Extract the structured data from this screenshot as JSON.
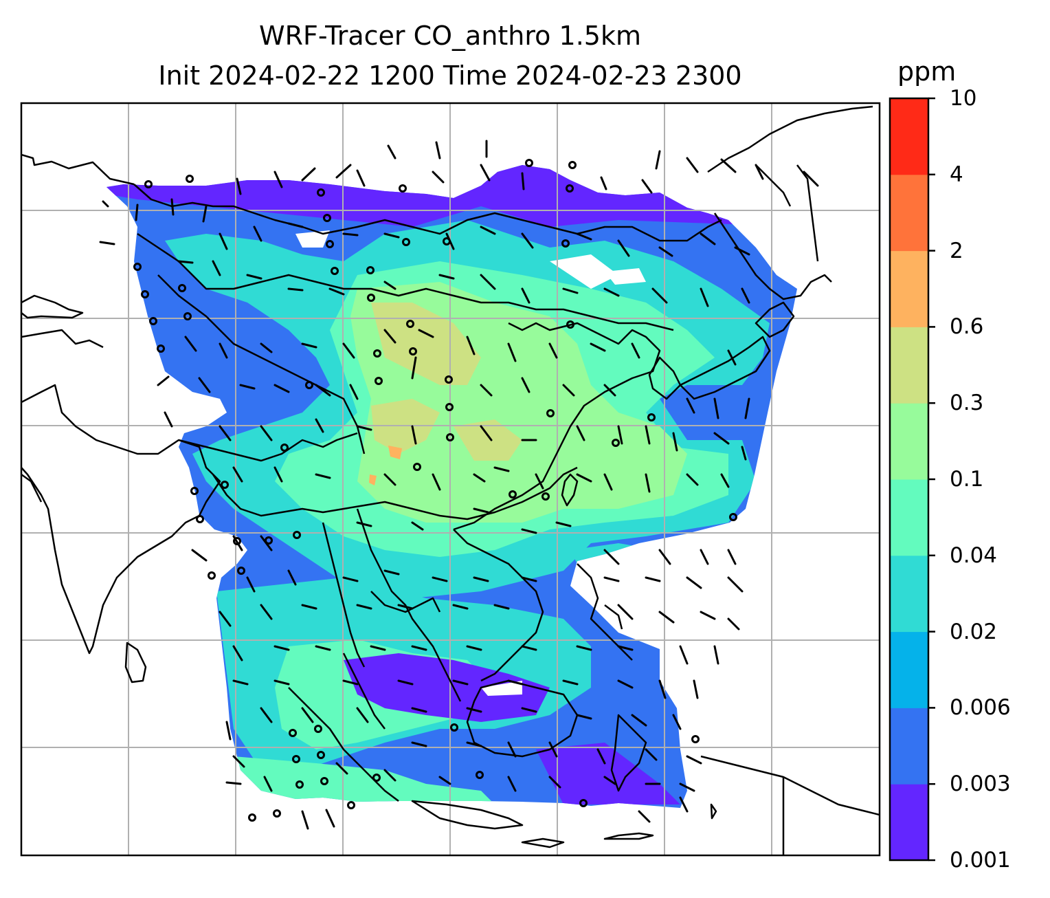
{
  "title": {
    "line1": "WRF-Tracer CO_anthro 1.5km",
    "line2": "Init 2024-02-22 1200 Time 2024-02-23 2300"
  },
  "colorbar": {
    "unit": "ppm",
    "levels": [
      "0.001",
      "0.003",
      "0.006",
      "0.02",
      "0.04",
      "0.1",
      "0.3",
      "0.6",
      "2",
      "4",
      "10"
    ],
    "colors": [
      "#6326ff",
      "#3473f2",
      "#05b2ea",
      "#30dbd4",
      "#63fbbe",
      "#97fb9b",
      "#cde183",
      "#feb25f",
      "#ff733a",
      "#ff2a17"
    ]
  },
  "map": {
    "grid": "on",
    "layers": [
      "co-concentration-field",
      "coastlines",
      "country-borders",
      "wind-barbs"
    ]
  }
}
